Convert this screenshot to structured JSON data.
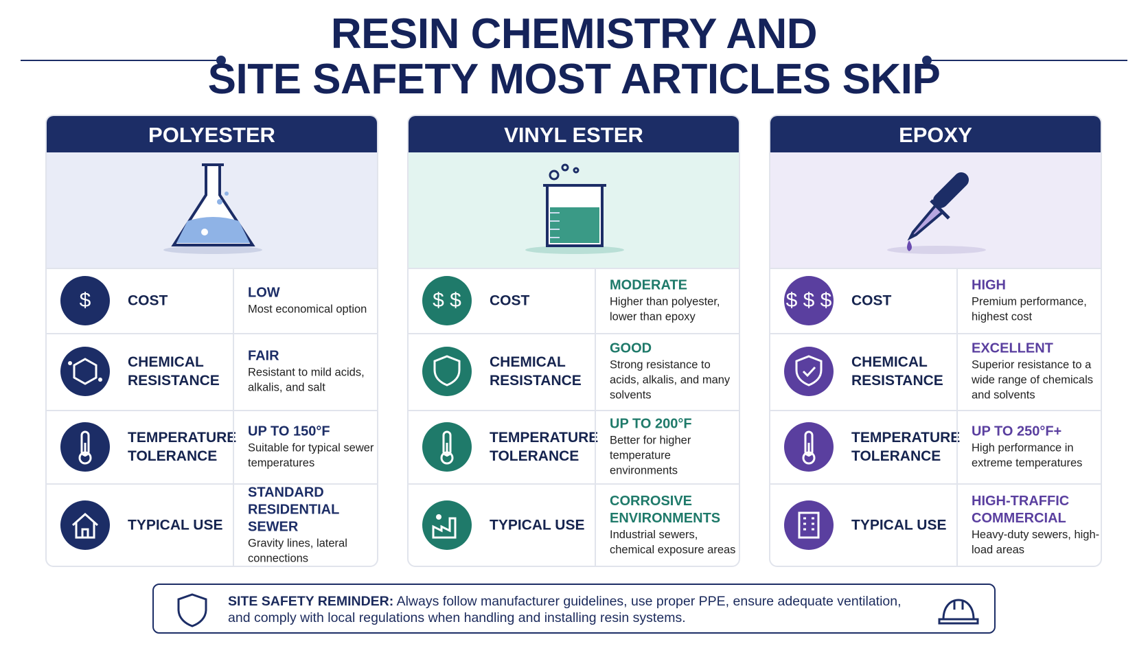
{
  "title": [
    "RESIN CHEMISTRY AND",
    "SITE SAFETY MOST ARTICLES SKIP"
  ],
  "columns": [
    {
      "name": "POLYESTER",
      "cost_icon": "$",
      "rows": [
        {
          "label": "COST",
          "rating": "LOW",
          "detail": "Most economical option"
        },
        {
          "label": "CHEMICAL RESISTANCE",
          "rating": "FAIR",
          "detail": "Resistant to mild acids, alkalis, and salt"
        },
        {
          "label": "TEMPERATURE TOLERANCE",
          "rating": "UP TO 150°F",
          "detail": "Suitable for typical sewer temperatures"
        },
        {
          "label": "TYPICAL USE",
          "rating": "STANDARD RESIDENTIAL SEWER",
          "detail": "Gravity lines, lateral connections"
        }
      ]
    },
    {
      "name": "VINYL ESTER",
      "cost_icon": "$ $",
      "rows": [
        {
          "label": "COST",
          "rating": "MODERATE",
          "detail": "Higher than polyester, lower than epoxy"
        },
        {
          "label": "CHEMICAL RESISTANCE",
          "rating": "GOOD",
          "detail": "Strong resistance to acids, alkalis, and many solvents"
        },
        {
          "label": "TEMPERATURE TOLERANCE",
          "rating": "UP TO 200°F",
          "detail": "Better for higher temperature environments"
        },
        {
          "label": "TYPICAL USE",
          "rating": "CORROSIVE ENVIRONMENTS",
          "detail": "Industrial sewers, chemical exposure areas"
        }
      ]
    },
    {
      "name": "EPOXY",
      "cost_icon": "$ $ $",
      "rows": [
        {
          "label": "COST",
          "rating": "HIGH",
          "detail": "Premium performance, highest cost"
        },
        {
          "label": "CHEMICAL RESISTANCE",
          "rating": "EXCELLENT",
          "detail": "Superior resistance to a wide range of chemicals and solvents"
        },
        {
          "label": "TEMPERATURE TOLERANCE",
          "rating": "UP TO 250°F+",
          "detail": "High performance in extreme temperatures"
        },
        {
          "label": "TYPICAL USE",
          "rating": "HIGH-TRAFFIC COMMERCIAL",
          "detail": "Heavy-duty sewers, high-load areas"
        }
      ]
    }
  ],
  "footer": {
    "label": "SITE SAFETY REMINDER:",
    "text": "Always follow manufacturer guidelines, use proper PPE, ensure adequate ventilation, and comply with local regulations when handling and installing resin systems."
  }
}
